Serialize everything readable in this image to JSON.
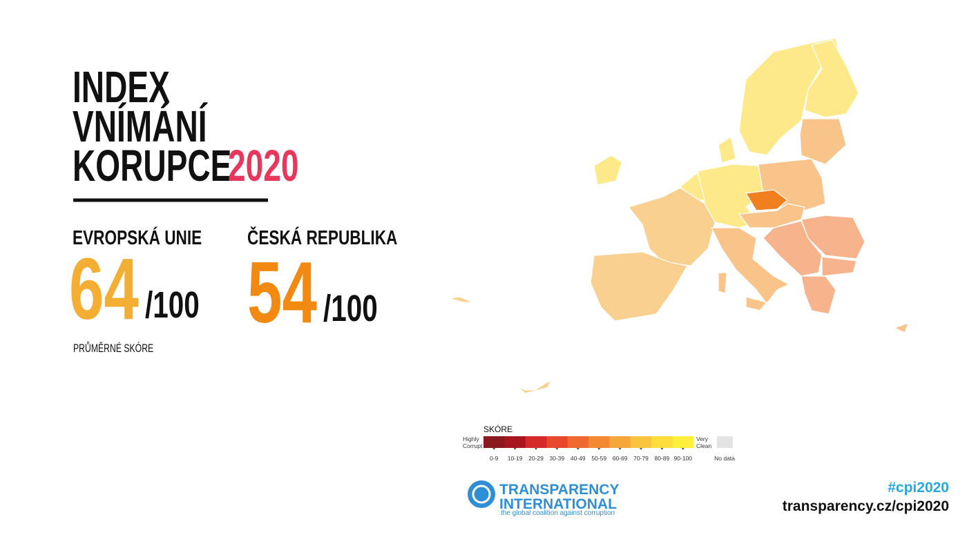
{
  "header": {
    "title_lines": [
      "INDEX",
      "VNÍMÁNÍ",
      "KORUPCE"
    ],
    "year": "2020"
  },
  "eu": {
    "label": "EVROPSKÁ UNIE",
    "score": 64,
    "out_of": "/100",
    "note": "PRŮMĚRNÉ SKÓRE"
  },
  "cz": {
    "label": "ČESKÁ REPUBLIKA",
    "score": 54,
    "out_of": "/100"
  },
  "legend": {
    "title": "SKÓRE",
    "low": [
      "Highly",
      "Corrupt"
    ],
    "high": [
      "Very",
      "Clean"
    ],
    "ranges": [
      "0-9",
      "10-19",
      "20-29",
      "30-39",
      "40-49",
      "50-59",
      "60-69",
      "70-79",
      "80-89",
      "90-100"
    ],
    "colors": [
      "#8b1a1f",
      "#a8171f",
      "#d62a2a",
      "#e8482c",
      "#ee6a2e",
      "#f38a33",
      "#f6a73a",
      "#f9c43e",
      "#fbde3c",
      "#fcf03a"
    ],
    "no_data": "No data"
  },
  "logo": {
    "line1": "TRANSPARENCY",
    "line2": "INTERNATIONAL",
    "tagline": "the global coalition against corruption"
  },
  "footer": {
    "hashtag": "#cpi2020",
    "url": "transparency.cz/cpi2020"
  }
}
